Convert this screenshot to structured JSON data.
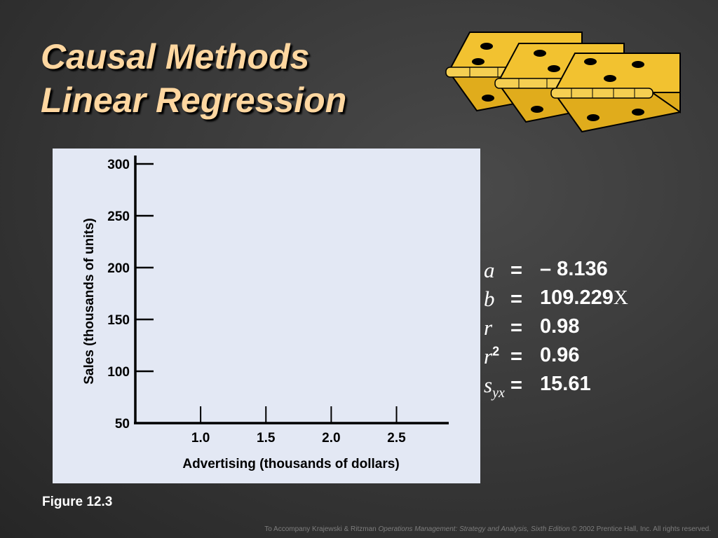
{
  "title": {
    "line1": "Causal Methods",
    "line2": "Linear Regression"
  },
  "chart_data": {
    "type": "scatter",
    "xlabel": "Advertising (thousands of dollars)",
    "ylabel": "Sales (thousands of units)",
    "x_ticks": [
      "1.0",
      "1.5",
      "2.0",
      "2.5"
    ],
    "y_ticks": [
      "50",
      "100",
      "150",
      "200",
      "250",
      "300"
    ],
    "xlim": [
      0.5,
      2.9
    ],
    "ylim": [
      50,
      300
    ],
    "grid": false,
    "series": []
  },
  "stats": [
    {
      "symbol": "a",
      "sup": "",
      "sub": "",
      "eq": "=",
      "value": "– 8.136",
      "suffix": ""
    },
    {
      "symbol": "b",
      "sup": "",
      "sub": "",
      "eq": "=",
      "value": "109.229",
      "suffix": "X"
    },
    {
      "symbol": "r",
      "sup": "",
      "sub": "",
      "eq": "=",
      "value": "0.98",
      "suffix": ""
    },
    {
      "symbol": "r",
      "sup": "2",
      "sub": "",
      "eq": "=",
      "value": "0.96",
      "suffix": ""
    },
    {
      "symbol": "s",
      "sup": "",
      "sub": "yx",
      "eq": "=",
      "value": "15.61",
      "suffix": ""
    }
  ],
  "figure_label": "Figure 12.3",
  "footer": {
    "prefix": "To Accompany Krajewski & Ritzman ",
    "book": "Operations Management: Strategy and Analysis, Sixth Edition",
    "suffix": " © 2002 Prentice Hall, Inc. All rights reserved."
  },
  "colors": {
    "title": "#ffd7a0",
    "panel": "#e3e8f4",
    "hinge": "#f2c230"
  },
  "icons": {
    "logo": "hinge-logo-icon"
  }
}
